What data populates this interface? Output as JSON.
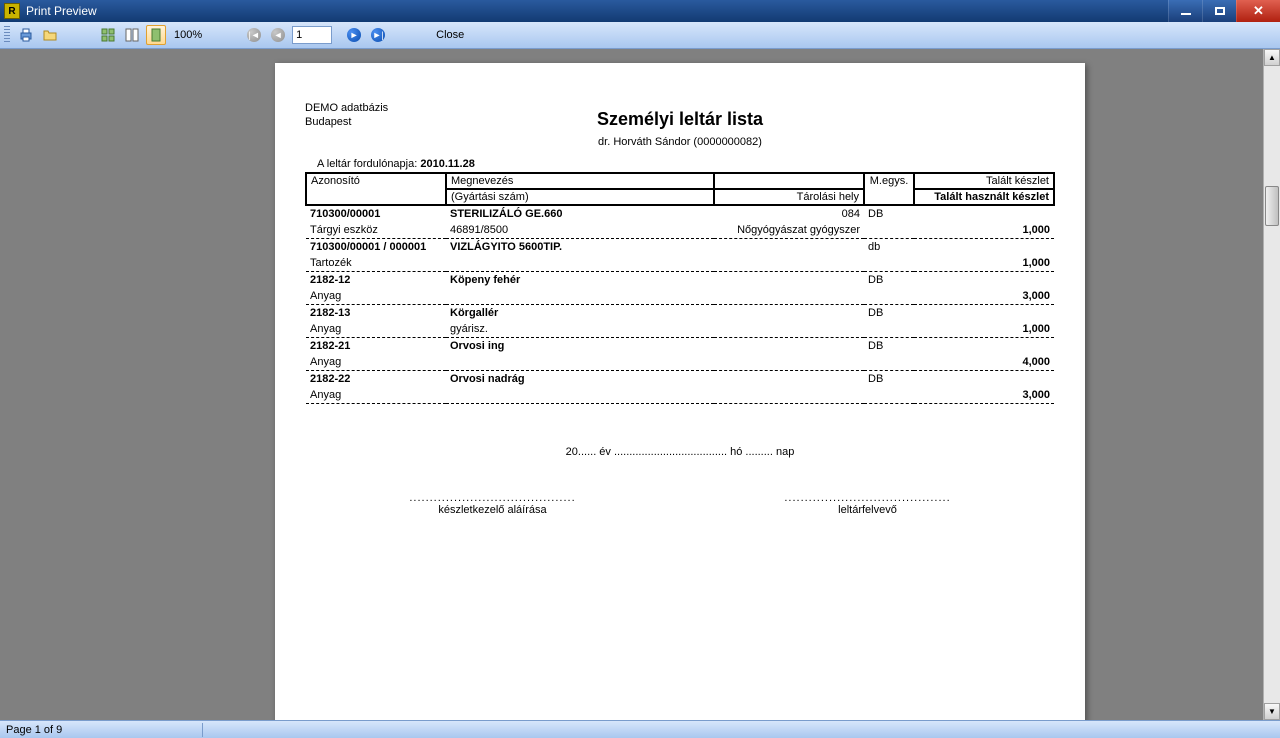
{
  "window": {
    "title": "Print Preview"
  },
  "toolbar": {
    "zoom": "100%",
    "page_number": "1",
    "close_label": "Close"
  },
  "status": {
    "text": "Page 1 of 9"
  },
  "report": {
    "db_line1": "DEMO adatbázis",
    "db_line2": "Budapest",
    "title": "Személyi leltár lista",
    "subtitle": "dr. Horváth Sándor (0000000082)",
    "date_label": "A leltár fordulónapja:",
    "date_value": "2010.11.28",
    "headers": {
      "id": "Azonosító",
      "name_l1": "Megnevezés",
      "name_l2": "(Gyártási szám)",
      "loc": "Tárolási hely",
      "unit": "M.egys.",
      "qty_l1": "Talált készlet",
      "qty_l2": "Talált használt készlet"
    },
    "rows": [
      {
        "id": "710300/00001",
        "name": "STERILIZÁLÓ GE.660",
        "loc": "084",
        "unit": "DB",
        "bold": true,
        "sub_id": "Tárgyi eszköz",
        "sub_name": "46891/8500",
        "sub_loc": "Nőgyógyászat gyógyszer",
        "qty": "1,000"
      },
      {
        "id": "710300/00001 / 000001",
        "name": "VIZLÁGYITO 5600TIP.",
        "loc": "",
        "unit": "db",
        "bold": true,
        "sub_id": "Tartozék",
        "sub_name": "",
        "sub_loc": "",
        "qty": "1,000"
      },
      {
        "id": "2182-12",
        "name": "Köpeny fehér",
        "loc": "",
        "unit": "DB",
        "bold": true,
        "sub_id": "Anyag",
        "sub_name": "",
        "sub_loc": "",
        "qty": "3,000"
      },
      {
        "id": "2182-13",
        "name": "Körgallér",
        "loc": "",
        "unit": "DB",
        "bold": true,
        "sub_id": "Anyag",
        "sub_name": "gyárisz.",
        "sub_loc": "",
        "qty": "1,000"
      },
      {
        "id": "2182-21",
        "name": "Orvosi ing",
        "loc": "",
        "unit": "DB",
        "bold": true,
        "sub_id": "Anyag",
        "sub_name": "",
        "sub_loc": "",
        "qty": "4,000"
      },
      {
        "id": "2182-22",
        "name": "Orvosi nadrág",
        "loc": "",
        "unit": "DB",
        "bold": true,
        "sub_id": "Anyag",
        "sub_name": "",
        "sub_loc": "",
        "qty": "3,000"
      }
    ],
    "footer_date": "20...... év ..................................... hó ......... nap",
    "sign1_line": ".........................................",
    "sign1_label": "készletkezelő aláírása",
    "sign2_line": ".........................................",
    "sign2_label": "leltárfelvevő"
  }
}
